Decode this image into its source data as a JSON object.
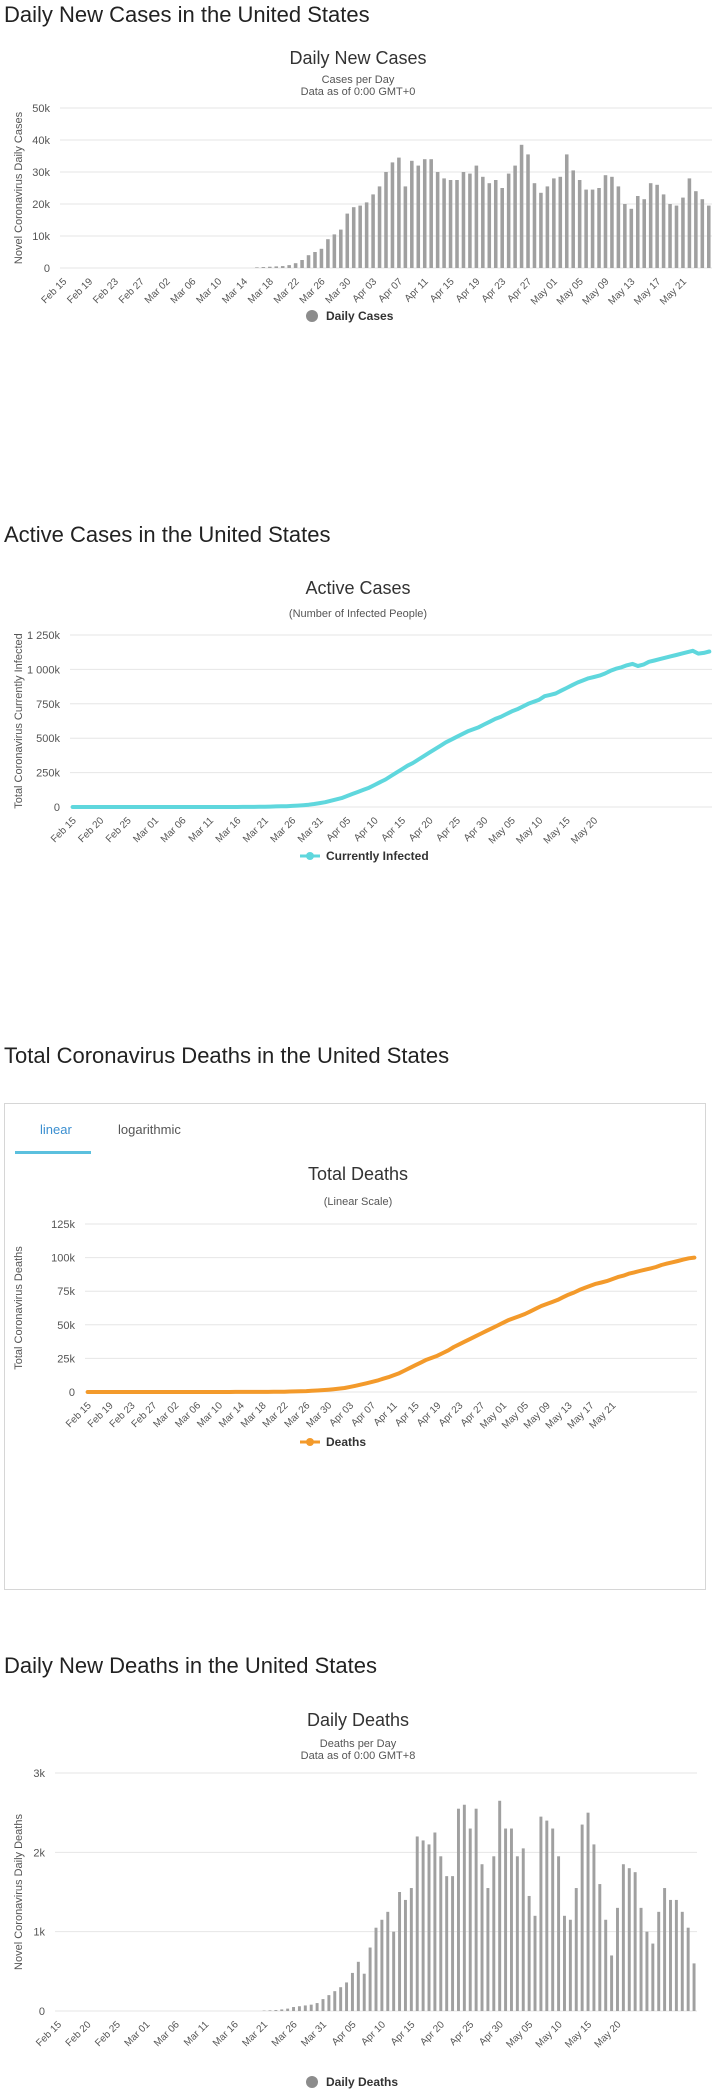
{
  "sections": {
    "daily_cases_heading": "Daily New Cases in the United States",
    "active_cases_heading": "Active Cases in the United States",
    "total_deaths_heading": "Total Coronavirus Deaths in the United States",
    "daily_deaths_heading": "Daily New Deaths in the United States"
  },
  "tabs": {
    "linear": "linear",
    "logarithmic": "logarithmic"
  },
  "colors": {
    "bar": "#a0a0a0",
    "active_line": "#5fd7dd",
    "deaths_line": "#f39a2b",
    "grid": "#e6e6e6"
  },
  "chart_data": [
    {
      "id": "daily-cases",
      "type": "bar",
      "title": "Daily New Cases",
      "subtitle": [
        "Cases per Day",
        "Data as of 0:00 GMT+0"
      ],
      "ylabel": "Novel Coronavirus Daily Cases",
      "ylim": [
        0,
        50000
      ],
      "yticks": [
        0,
        10000,
        20000,
        30000,
        40000,
        50000
      ],
      "ytick_labels": [
        "0",
        "10k",
        "20k",
        "30k",
        "40k",
        "50k"
      ],
      "start": "Feb 15",
      "xtick_labels": [
        "Feb 15",
        "Feb 19",
        "Feb 23",
        "Feb 27",
        "Mar 02",
        "Mar 06",
        "Mar 10",
        "Mar 14",
        "Mar 18",
        "Mar 22",
        "Mar 26",
        "Mar 30",
        "Apr 03",
        "Apr 07",
        "Apr 11",
        "Apr 15",
        "Apr 19",
        "Apr 23",
        "Apr 27",
        "May 01",
        "May 05",
        "May 09",
        "May 13",
        "May 17",
        "May 21"
      ],
      "legend": "Daily Cases",
      "values": [
        0,
        0,
        0,
        0,
        0,
        0,
        0,
        0,
        0,
        0,
        0,
        0,
        0,
        0,
        0,
        0,
        0,
        0,
        0,
        0,
        0,
        0,
        0,
        0,
        0,
        0,
        0,
        0,
        0,
        0,
        200,
        300,
        400,
        500,
        600,
        900,
        1500,
        2500,
        4000,
        5000,
        6000,
        9000,
        10500,
        12000,
        17000,
        19000,
        19500,
        20500,
        23000,
        25500,
        30000,
        33000,
        34500,
        25500,
        33500,
        32000,
        34000,
        34000,
        30000,
        28000,
        27500,
        27500,
        30000,
        29500,
        32000,
        28500,
        26500,
        27500,
        25000,
        29500,
        32000,
        38500,
        35500,
        26500,
        23500,
        25500,
        28000,
        28500,
        35500,
        30500,
        27500,
        24500,
        24500,
        25000,
        29000,
        28500,
        25500,
        20000,
        18500,
        22500,
        21500,
        26500,
        26000,
        23000,
        20000,
        19500,
        22000,
        28000,
        24000,
        21500,
        19500
      ]
    },
    {
      "id": "active-cases",
      "type": "line",
      "title": "Active Cases",
      "subtitle": [
        "(Number of Infected People)"
      ],
      "ylabel": "Total Coronavirus Currently Infected",
      "ylim": [
        0,
        1250000
      ],
      "yticks": [
        0,
        250000,
        500000,
        750000,
        1000000,
        1250000
      ],
      "ytick_labels": [
        "0",
        "250k",
        "500k",
        "750k",
        "1 000k",
        "1 250k"
      ],
      "start": "Feb 15",
      "xtick_labels": [
        "Feb 15",
        "Feb 20",
        "Feb 25",
        "Mar 01",
        "Mar 06",
        "Mar 11",
        "Mar 16",
        "Mar 21",
        "Mar 26",
        "Mar 31",
        "Apr 05",
        "Apr 10",
        "Apr 15",
        "Apr 20",
        "Apr 25",
        "Apr 30",
        "May 05",
        "May 10",
        "May 15",
        "May 20"
      ],
      "legend": "Currently Infected",
      "values": [
        13,
        13,
        13,
        13,
        13,
        13,
        13,
        13,
        13,
        13,
        13,
        13,
        13,
        13,
        13,
        13,
        13,
        13,
        13,
        13,
        13,
        20,
        30,
        40,
        50,
        60,
        80,
        100,
        150,
        200,
        300,
        500,
        700,
        1000,
        1500,
        2000,
        3000,
        4000,
        5000,
        6000,
        8000,
        10000,
        13000,
        17000,
        22000,
        28000,
        35000,
        45000,
        55000,
        65000,
        80000,
        95000,
        110000,
        125000,
        140000,
        160000,
        180000,
        200000,
        225000,
        250000,
        275000,
        300000,
        320000,
        345000,
        370000,
        395000,
        420000,
        445000,
        470000,
        490000,
        510000,
        530000,
        550000,
        565000,
        580000,
        600000,
        620000,
        640000,
        655000,
        675000,
        695000,
        710000,
        730000,
        750000,
        765000,
        780000,
        805000,
        815000,
        825000,
        845000,
        865000,
        885000,
        905000,
        920000,
        935000,
        945000,
        955000,
        970000,
        990000,
        1005000,
        1015000,
        1030000,
        1040000,
        1025000,
        1035000,
        1055000,
        1065000,
        1075000,
        1085000,
        1095000,
        1105000,
        1115000,
        1125000,
        1135000,
        1115000,
        1120000,
        1130000
      ]
    },
    {
      "id": "total-deaths",
      "type": "line",
      "title": "Total Deaths",
      "subtitle": [
        "(Linear Scale)"
      ],
      "ylabel": "Total Coronavirus Deaths",
      "ylim": [
        0,
        125000
      ],
      "yticks": [
        0,
        25000,
        50000,
        75000,
        100000,
        125000
      ],
      "ytick_labels": [
        "0",
        "25k",
        "50k",
        "75k",
        "100k",
        "125k"
      ],
      "start": "Feb 15",
      "xtick_labels": [
        "Feb 15",
        "Feb 19",
        "Feb 23",
        "Feb 27",
        "Mar 02",
        "Mar 06",
        "Mar 10",
        "Mar 14",
        "Mar 18",
        "Mar 22",
        "Mar 26",
        "Mar 30",
        "Apr 03",
        "Apr 07",
        "Apr 11",
        "Apr 15",
        "Apr 19",
        "Apr 23",
        "Apr 27",
        "May 01",
        "May 05",
        "May 09",
        "May 13",
        "May 17",
        "May 21"
      ],
      "legend": "Deaths",
      "values": [
        0,
        0,
        0,
        0,
        0,
        0,
        0,
        0,
        0,
        0,
        0,
        0,
        0,
        0,
        0,
        1,
        1,
        2,
        6,
        9,
        11,
        12,
        15,
        19,
        22,
        26,
        30,
        38,
        41,
        48,
        57,
        69,
        85,
        108,
        150,
        200,
        260,
        340,
        420,
        560,
        700,
        900,
        1100,
        1400,
        1700,
        2100,
        2500,
        3000,
        3800,
        4600,
        5500,
        6500,
        7500,
        8500,
        9800,
        11000,
        12500,
        14000,
        16000,
        18000,
        20000,
        22000,
        24000,
        25500,
        27000,
        29000,
        31000,
        33500,
        35500,
        37500,
        39500,
        41500,
        43500,
        45500,
        47500,
        49500,
        51500,
        53500,
        55000,
        56500,
        58000,
        60000,
        62000,
        64000,
        65500,
        67000,
        68500,
        70500,
        72500,
        74000,
        76000,
        77500,
        79000,
        80500,
        81500,
        82500,
        84000,
        85500,
        86500,
        88000,
        89000,
        90000,
        91000,
        92000,
        93000,
        94500,
        95500,
        96500,
        97500,
        98500,
        99500,
        100000
      ]
    },
    {
      "id": "daily-deaths",
      "type": "bar",
      "title": "Daily Deaths",
      "subtitle": [
        "Deaths per Day",
        "Data as of 0:00 GMT+8"
      ],
      "ylabel": "Novel Coronavirus Daily Deaths",
      "ylim": [
        0,
        3000
      ],
      "yticks": [
        0,
        1000,
        2000,
        3000
      ],
      "ytick_labels": [
        "0",
        "1k",
        "2k",
        "3k"
      ],
      "start": "Feb 15",
      "xtick_labels": [
        "Feb 15",
        "Feb 20",
        "Feb 25",
        "Mar 01",
        "Mar 06",
        "Mar 11",
        "Mar 16",
        "Mar 21",
        "Mar 26",
        "Mar 31",
        "Apr 05",
        "Apr 10",
        "Apr 15",
        "Apr 20",
        "Apr 25",
        "Apr 30",
        "May 05",
        "May 10",
        "May 15",
        "May 20"
      ],
      "legend": "Daily Deaths",
      "values": [
        0,
        0,
        0,
        0,
        0,
        0,
        0,
        0,
        0,
        0,
        0,
        0,
        0,
        0,
        0,
        0,
        0,
        0,
        0,
        0,
        0,
        0,
        0,
        0,
        0,
        0,
        0,
        0,
        0,
        0,
        0,
        0,
        0,
        0,
        0,
        5,
        8,
        12,
        20,
        30,
        50,
        60,
        70,
        80,
        100,
        150,
        200,
        250,
        300,
        360,
        480,
        620,
        470,
        800,
        1050,
        1150,
        1250,
        1000,
        1500,
        1400,
        1550,
        2200,
        2150,
        2100,
        2250,
        1950,
        1700,
        1700,
        2550,
        2600,
        2300,
        2550,
        1850,
        1550,
        1950,
        2650,
        2300,
        2300,
        1950,
        2050,
        1450,
        1200,
        2450,
        2400,
        2300,
        1950,
        1200,
        1150,
        1550,
        2350,
        2500,
        2100,
        1600,
        1150,
        700,
        1300,
        1850,
        1800,
        1750,
        1300,
        1000,
        850,
        1250,
        1550,
        1400,
        1400,
        1250,
        1050,
        600
      ]
    }
  ]
}
